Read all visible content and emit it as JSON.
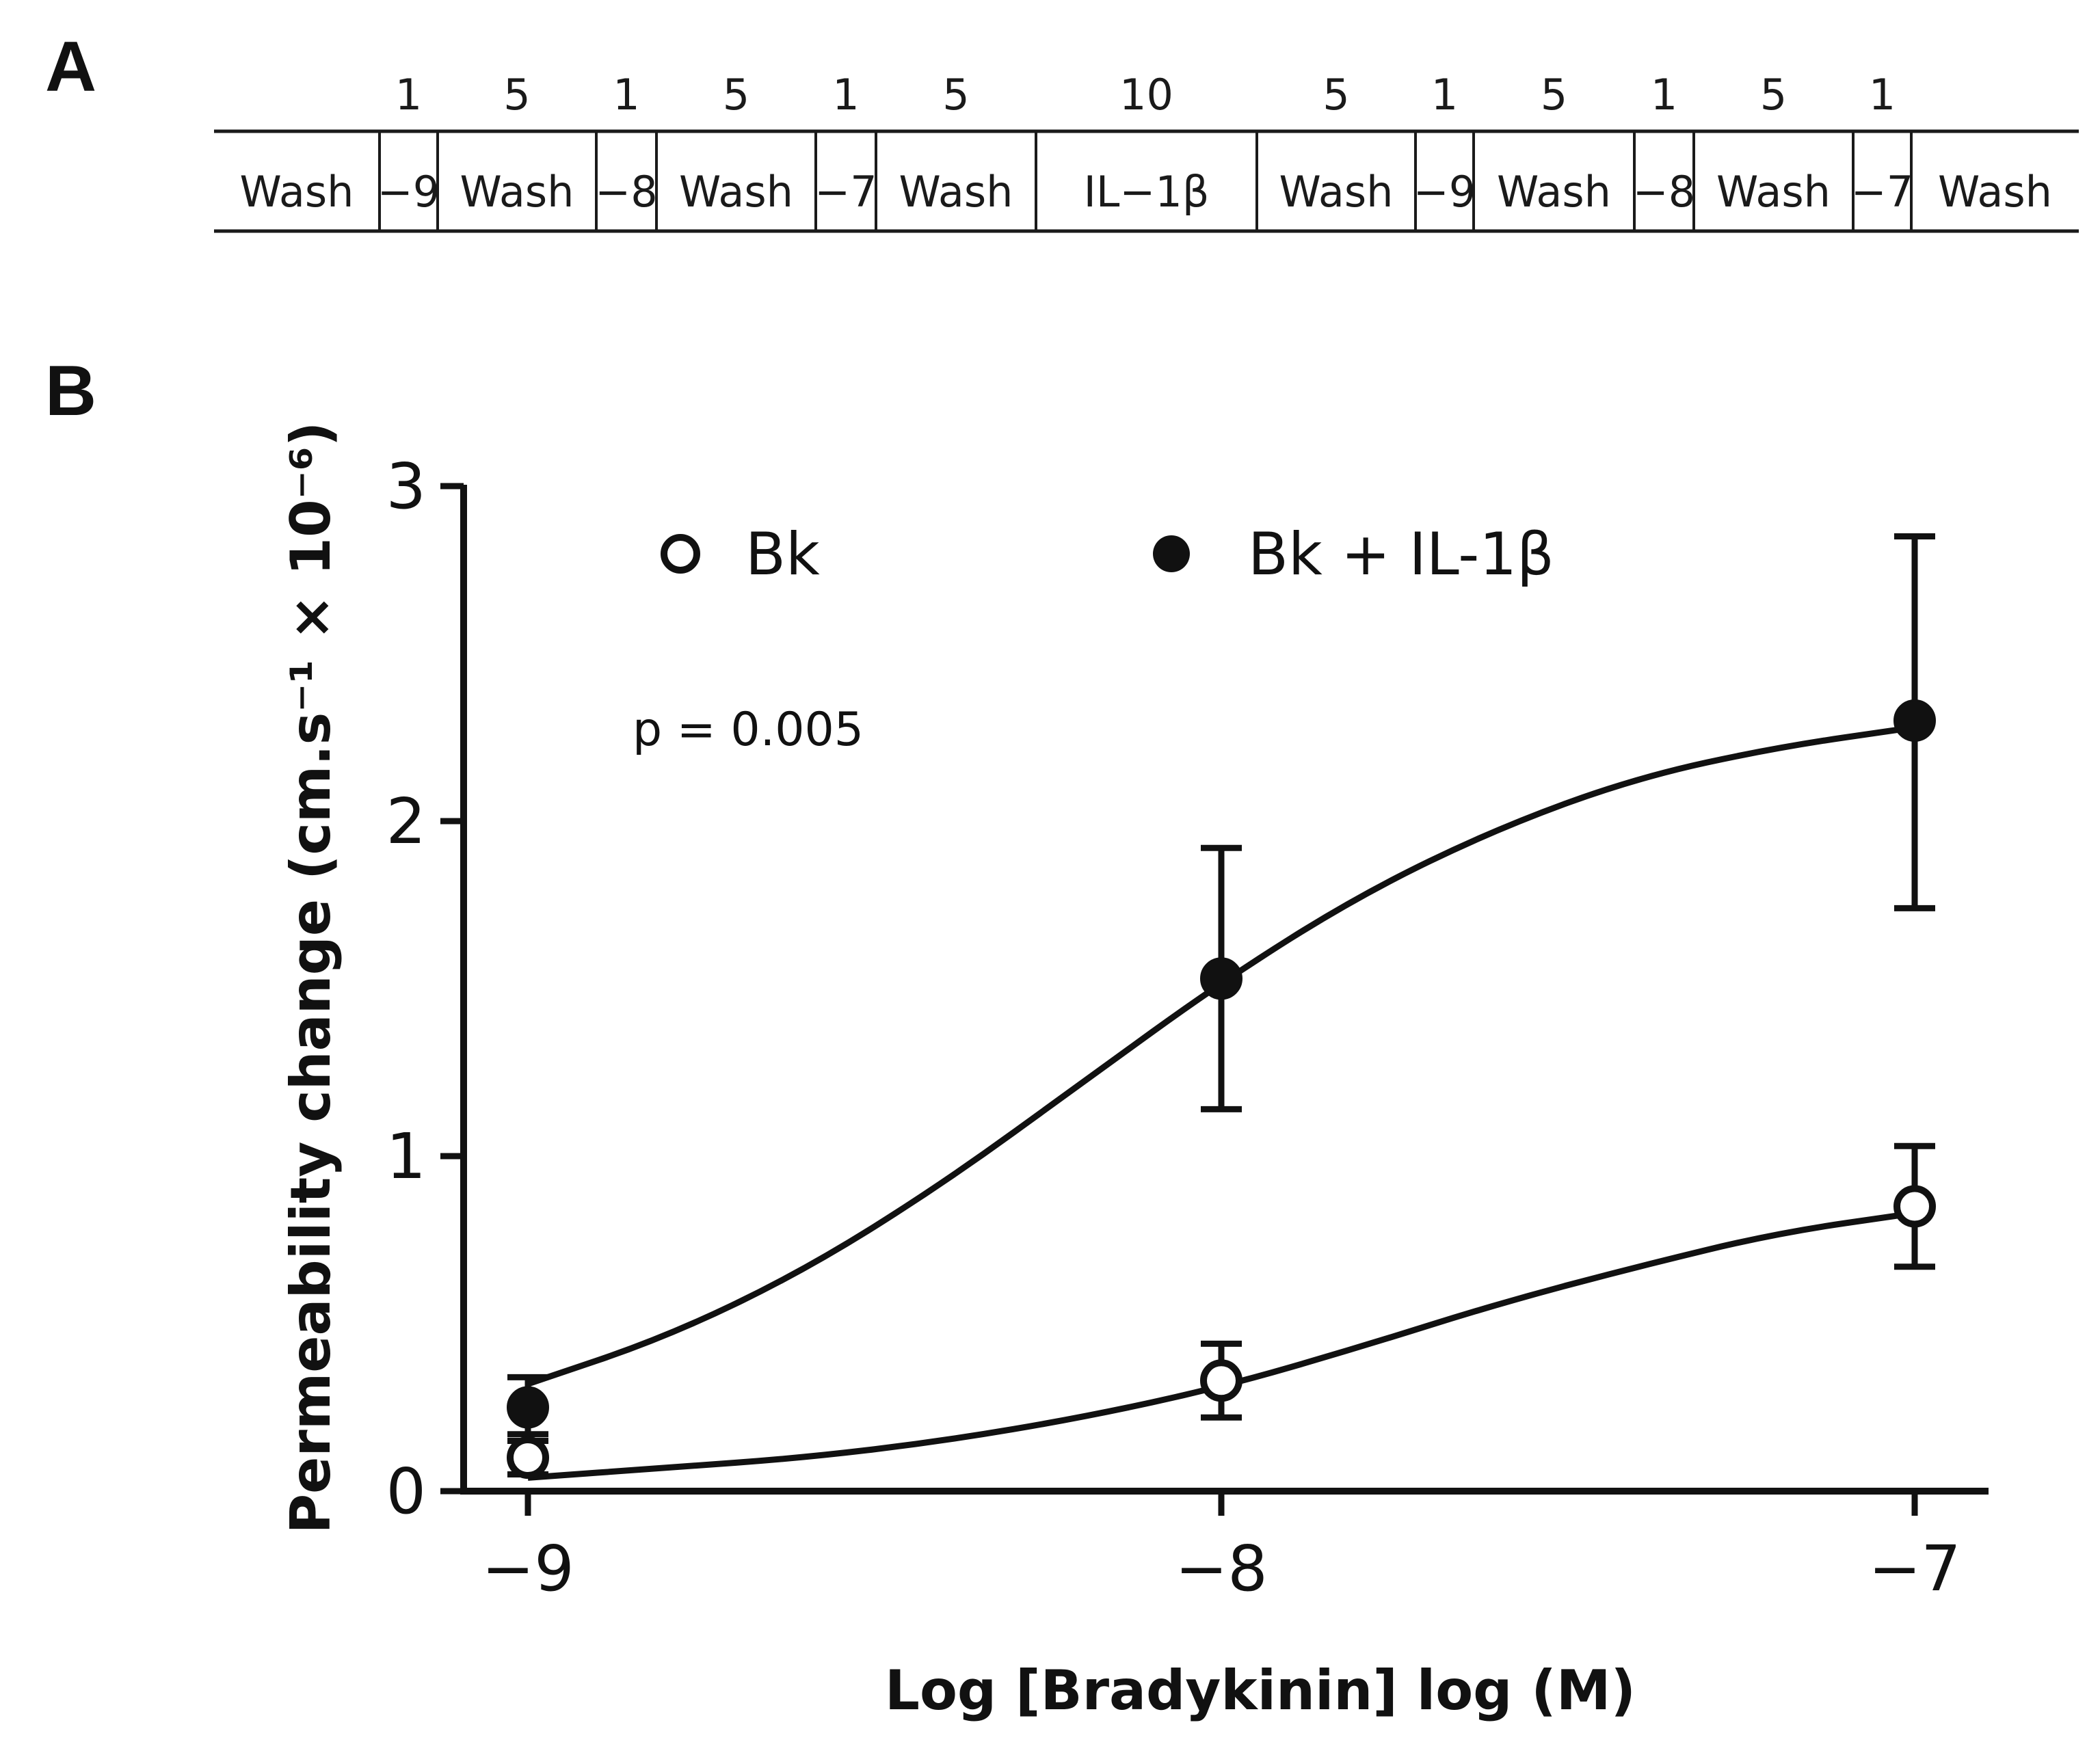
{
  "panels": {
    "a": "A",
    "b": "B"
  },
  "protocol": {
    "durations": [
      "1",
      "5",
      "1",
      "5",
      "1",
      "5",
      "10",
      "5",
      "1",
      "5",
      "1",
      "5",
      "1"
    ],
    "segments": [
      "Wash",
      "-9",
      "Wash",
      "-8",
      "Wash",
      "-7",
      "Wash",
      "IL-1β",
      "Wash",
      "-9",
      "Wash",
      "-8",
      "Wash",
      "-7",
      "Wash"
    ]
  },
  "chart_data": {
    "type": "scatter",
    "title": "",
    "xlabel": "Log [Bradykinin] log (M)",
    "ylabel": "Permeability change (cm.s⁻¹ × 10⁻⁶)",
    "xlim": [
      -9.1,
      -6.9
    ],
    "ylim": [
      0,
      3
    ],
    "x_ticks": [
      -9,
      -8,
      -7
    ],
    "x_tick_labels": [
      "-9",
      "-8",
      "-7"
    ],
    "y_ticks": [
      0,
      1,
      2,
      3
    ],
    "y_tick_labels": [
      "0",
      "1",
      "2",
      "3"
    ],
    "legend_placement": "top",
    "annotation": "p = 0.005",
    "series": [
      {
        "name": "Bk",
        "marker": "open-circle",
        "x": [
          -9,
          -8,
          -7
        ],
        "y": [
          0.1,
          0.33,
          0.85
        ],
        "yerr_low": [
          0.05,
          0.22,
          0.67
        ],
        "yerr_high": [
          0.17,
          0.44,
          1.03
        ],
        "fit_x": [
          -9.0,
          -8.8,
          -8.6,
          -8.4,
          -8.2,
          -8.0,
          -7.8,
          -7.6,
          -7.4,
          -7.2,
          -7.0
        ],
        "fit_y": [
          0.04,
          0.07,
          0.1,
          0.15,
          0.22,
          0.31,
          0.43,
          0.56,
          0.67,
          0.77,
          0.83
        ]
      },
      {
        "name": "Bk + IL-1β",
        "marker": "filled-circle",
        "x": [
          -9,
          -8,
          -7
        ],
        "y": [
          0.25,
          1.53,
          2.3
        ],
        "yerr_low": [
          0.15,
          1.14,
          1.74
        ],
        "yerr_high": [
          0.34,
          1.92,
          2.85
        ],
        "fit_x": [
          -9.0,
          -8.8,
          -8.6,
          -8.4,
          -8.2,
          -8.0,
          -7.8,
          -7.6,
          -7.4,
          -7.2,
          -7.0
        ],
        "fit_y": [
          0.32,
          0.46,
          0.66,
          0.92,
          1.22,
          1.52,
          1.78,
          1.98,
          2.13,
          2.22,
          2.28
        ]
      }
    ]
  }
}
